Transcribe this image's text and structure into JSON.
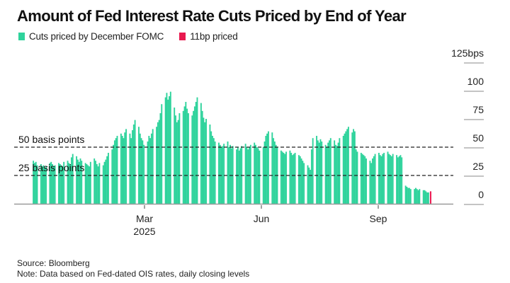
{
  "chart_data": {
    "type": "bar",
    "title": "Amount of Fed Interest Rate Cuts Priced by End of Year",
    "legend": [
      {
        "label": "Cuts priced by December FOMC",
        "color": "#2fd39c"
      },
      {
        "label": "11bp priced",
        "color": "#e8194f"
      }
    ],
    "legend_position": "top-left",
    "y_unit": "bps",
    "ylim": [
      0,
      125
    ],
    "yticks": [
      {
        "value": 0,
        "label": "0"
      },
      {
        "value": 25,
        "label": "25"
      },
      {
        "value": 50,
        "label": "50"
      },
      {
        "value": 75,
        "label": "75"
      },
      {
        "value": 100,
        "label": "100"
      },
      {
        "value": 125,
        "label": "125bps"
      }
    ],
    "x_range": [
      "2024-12-01",
      "2025-11-10"
    ],
    "xticks": [
      {
        "date": "2025-03-01",
        "label": "Mar",
        "sublabel": "2025"
      },
      {
        "date": "2025-06-01",
        "label": "Jun",
        "sublabel": ""
      },
      {
        "date": "2025-09-01",
        "label": "Sep",
        "sublabel": ""
      }
    ],
    "reference_lines": [
      {
        "value": 50,
        "label": "50 basis points",
        "style": "dashed"
      },
      {
        "value": 25,
        "label": "25 basis points",
        "style": "dashed"
      }
    ],
    "series_start": "2024-12-03",
    "series_step": "trading-day",
    "values": [
      38,
      36,
      37,
      34,
      35,
      33,
      34,
      32,
      33,
      36,
      37,
      35,
      33,
      34,
      36,
      35,
      34,
      33,
      37,
      38,
      36,
      35,
      41,
      44,
      42,
      39,
      37,
      40,
      38,
      36,
      35,
      34,
      33,
      37,
      40,
      38,
      35,
      33,
      36,
      34,
      37,
      39,
      42,
      45,
      48,
      52,
      56,
      58,
      60,
      62,
      60,
      58,
      63,
      66,
      62,
      58,
      65,
      70,
      74,
      68,
      62,
      58,
      56,
      52,
      55,
      60,
      58,
      62,
      66,
      68,
      72,
      74,
      80,
      88,
      94,
      98,
      92,
      95,
      99,
      85,
      78,
      72,
      74,
      80,
      82,
      86,
      90,
      84,
      80,
      78,
      82,
      86,
      90,
      94,
      89,
      82,
      76,
      72,
      75,
      70,
      64,
      60,
      58,
      55,
      54,
      52,
      50,
      51,
      53,
      55,
      50,
      52,
      49,
      51,
      48,
      50,
      47,
      49,
      51,
      53,
      50,
      48,
      50,
      52,
      54,
      52,
      50,
      49,
      47,
      50,
      55,
      60,
      62,
      64,
      63,
      58,
      55,
      52,
      50,
      47,
      46,
      45,
      44,
      46,
      47,
      45,
      43,
      44,
      45,
      43,
      42,
      40,
      38,
      36,
      34,
      32,
      30,
      48,
      58,
      60,
      56,
      54,
      57,
      55,
      52,
      50,
      54,
      56,
      58,
      56,
      52,
      51,
      54,
      58,
      60,
      62,
      64,
      66,
      68,
      63,
      66,
      64,
      48,
      46,
      45,
      44,
      43,
      42,
      40,
      38,
      36,
      40,
      42,
      44,
      45,
      43,
      42,
      44,
      45,
      46,
      44,
      43,
      42,
      44,
      43,
      41,
      42,
      43,
      41,
      16,
      15,
      14,
      14,
      13,
      13,
      14,
      13,
      12,
      13,
      12,
      12,
      11,
      10,
      10
    ],
    "highlight": {
      "label": "11bp priced",
      "value": 11,
      "color": "#e8194f"
    },
    "bar_color": "#2fd39c"
  },
  "footer": {
    "source": "Source: Bloomberg",
    "note": "Note: Data based on Fed-dated OIS rates, daily closing levels"
  }
}
